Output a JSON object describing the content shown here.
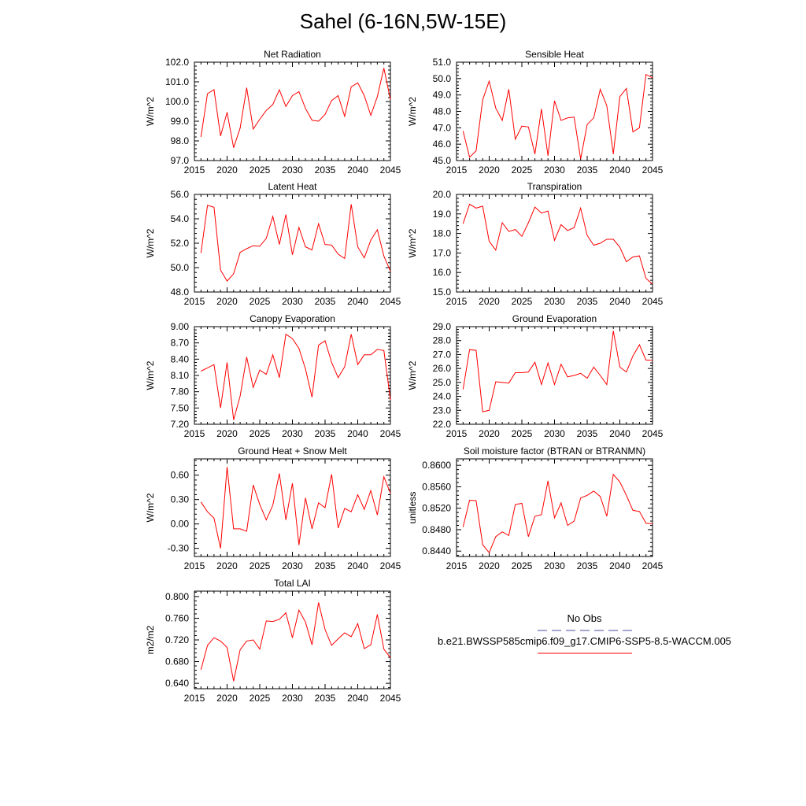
{
  "title": "Sahel (6-16N,5W-15E)",
  "colors": {
    "model": "#ff0000",
    "obs": "#4b4b9f",
    "axis": "#000000"
  },
  "chart_data": [
    {
      "type": "line",
      "title": "Net Radiation",
      "ylabel": "W/m^2",
      "xlim": [
        2015,
        2045
      ],
      "ylim": [
        97.0,
        102.0
      ],
      "xticks": [
        "2015",
        "2020",
        "2025",
        "2030",
        "2035",
        "2040",
        "2045"
      ],
      "yticks": [
        "97.0",
        "98.0",
        "99.0",
        "100.0",
        "101.0",
        "102.0"
      ],
      "x": [
        2016,
        2017,
        2018,
        2019,
        2020,
        2021,
        2022,
        2023,
        2024,
        2025,
        2026,
        2027,
        2028,
        2029,
        2030,
        2031,
        2032,
        2033,
        2034,
        2035,
        2036,
        2037,
        2038,
        2039,
        2040,
        2041,
        2042,
        2043,
        2044,
        2045
      ],
      "series": [
        {
          "name": "b.e21.BWSSP585cmip6.f09_g17.CMIP6-SSP5-8.5-WACCM.005",
          "values": [
            98.2,
            100.4,
            100.6,
            98.25,
            99.45,
            97.65,
            98.65,
            100.7,
            98.6,
            99.1,
            99.55,
            99.85,
            100.6,
            99.75,
            100.3,
            100.5,
            99.65,
            99.05,
            99.0,
            99.35,
            100.05,
            100.3,
            99.25,
            100.75,
            100.95,
            100.3,
            99.3,
            100.25,
            101.7,
            100.1
          ]
        }
      ]
    },
    {
      "type": "line",
      "title": "Sensible Heat",
      "ylabel": "W/m^2",
      "xlim": [
        2015,
        2045
      ],
      "ylim": [
        45.0,
        51.0
      ],
      "xticks": [
        "2015",
        "2020",
        "2025",
        "2030",
        "2035",
        "2040",
        "2045"
      ],
      "yticks": [
        "45.0",
        "46.0",
        "47.0",
        "48.0",
        "49.0",
        "50.0",
        "51.0"
      ],
      "x": [
        2016,
        2017,
        2018,
        2019,
        2020,
        2021,
        2022,
        2023,
        2024,
        2025,
        2026,
        2027,
        2028,
        2029,
        2030,
        2031,
        2032,
        2033,
        2034,
        2035,
        2036,
        2037,
        2038,
        2039,
        2040,
        2041,
        2042,
        2043,
        2044,
        2045
      ],
      "series": [
        {
          "name": "b.e21.BWSSP585cmip6.f09_g17.CMIP6-SSP5-8.5-WACCM.005",
          "values": [
            46.8,
            45.2,
            45.6,
            48.7,
            49.85,
            48.2,
            47.45,
            49.35,
            46.3,
            47.1,
            47.05,
            45.4,
            48.15,
            45.3,
            48.65,
            47.45,
            47.6,
            47.65,
            45.1,
            47.2,
            47.6,
            49.35,
            48.35,
            45.4,
            48.9,
            49.4,
            46.75,
            47.0,
            50.25,
            50.05
          ]
        }
      ]
    },
    {
      "type": "line",
      "title": "Latent Heat",
      "ylabel": "W/m^2",
      "xlim": [
        2015,
        2045
      ],
      "ylim": [
        48.0,
        56.0
      ],
      "xticks": [
        "2015",
        "2020",
        "2025",
        "2030",
        "2035",
        "2040",
        "2045"
      ],
      "yticks": [
        "48.0",
        "50.0",
        "52.0",
        "54.0",
        "56.0"
      ],
      "x": [
        2016,
        2017,
        2018,
        2019,
        2020,
        2021,
        2022,
        2023,
        2024,
        2025,
        2026,
        2027,
        2028,
        2029,
        2030,
        2031,
        2032,
        2033,
        2034,
        2035,
        2036,
        2037,
        2038,
        2039,
        2040,
        2041,
        2042,
        2043,
        2044,
        2045
      ],
      "series": [
        {
          "name": "b.e21.BWSSP585cmip6.f09_g17.CMIP6-SSP5-8.5-WACCM.005",
          "values": [
            51.2,
            55.1,
            54.95,
            49.8,
            48.9,
            49.5,
            51.25,
            51.55,
            51.8,
            51.75,
            52.4,
            54.2,
            51.9,
            54.35,
            51.05,
            53.3,
            51.7,
            51.45,
            53.6,
            51.9,
            51.85,
            51.1,
            50.75,
            55.2,
            51.7,
            50.8,
            52.25,
            53.1,
            50.95,
            49.7
          ]
        }
      ]
    },
    {
      "type": "line",
      "title": "Transpiration",
      "ylabel": "W/m^2",
      "xlim": [
        2015,
        2045
      ],
      "ylim": [
        15.0,
        20.0
      ],
      "xticks": [
        "2015",
        "2020",
        "2025",
        "2030",
        "2035",
        "2040",
        "2045"
      ],
      "yticks": [
        "15.0",
        "16.0",
        "17.0",
        "18.0",
        "19.0",
        "20.0"
      ],
      "x": [
        2016,
        2017,
        2018,
        2019,
        2020,
        2021,
        2022,
        2023,
        2024,
        2025,
        2026,
        2027,
        2028,
        2029,
        2030,
        2031,
        2032,
        2033,
        2034,
        2035,
        2036,
        2037,
        2038,
        2039,
        2040,
        2041,
        2042,
        2043,
        2044,
        2045
      ],
      "series": [
        {
          "name": "b.e21.BWSSP585cmip6.f09_g17.CMIP6-SSP5-8.5-WACCM.005",
          "values": [
            18.5,
            19.5,
            19.3,
            19.4,
            17.6,
            17.15,
            18.55,
            18.1,
            18.2,
            17.85,
            18.55,
            19.35,
            19.05,
            19.15,
            17.65,
            18.45,
            18.15,
            18.3,
            19.3,
            17.9,
            17.4,
            17.5,
            17.7,
            17.7,
            17.3,
            16.55,
            16.8,
            16.85,
            15.7,
            15.4
          ]
        }
      ]
    },
    {
      "type": "line",
      "title": "Canopy Evaporation",
      "ylabel": "W/m^2",
      "xlim": [
        2015,
        2045
      ],
      "ylim": [
        7.2,
        9.0
      ],
      "xticks": [
        "2015",
        "2020",
        "2025",
        "2030",
        "2035",
        "2040",
        "2045"
      ],
      "yticks": [
        "7.20",
        "7.50",
        "7.80",
        "8.10",
        "8.40",
        "8.70",
        "9.00"
      ],
      "x": [
        2016,
        2017,
        2018,
        2019,
        2020,
        2021,
        2022,
        2023,
        2024,
        2025,
        2026,
        2027,
        2028,
        2029,
        2030,
        2031,
        2032,
        2033,
        2034,
        2035,
        2036,
        2037,
        2038,
        2039,
        2040,
        2041,
        2042,
        2043,
        2044,
        2045
      ],
      "series": [
        {
          "name": "b.e21.BWSSP585cmip6.f09_g17.CMIP6-SSP5-8.5-WACCM.005",
          "values": [
            8.18,
            8.24,
            8.3,
            7.5,
            8.34,
            7.28,
            7.72,
            8.44,
            7.88,
            8.2,
            8.12,
            8.48,
            8.06,
            8.86,
            8.78,
            8.6,
            8.22,
            7.7,
            8.66,
            8.74,
            8.34,
            8.06,
            8.26,
            8.86,
            8.3,
            8.48,
            8.48,
            8.58,
            8.56,
            7.65
          ]
        }
      ]
    },
    {
      "type": "line",
      "title": "Ground Evaporation",
      "ylabel": "W/m^2",
      "xlim": [
        2015,
        2045
      ],
      "ylim": [
        22.0,
        29.0
      ],
      "xticks": [
        "2015",
        "2020",
        "2025",
        "2030",
        "2035",
        "2040",
        "2045"
      ],
      "yticks": [
        "22.0",
        "23.0",
        "24.0",
        "25.0",
        "26.0",
        "27.0",
        "28.0",
        "29.0"
      ],
      "x": [
        2016,
        2017,
        2018,
        2019,
        2020,
        2021,
        2022,
        2023,
        2024,
        2025,
        2026,
        2027,
        2028,
        2029,
        2030,
        2031,
        2032,
        2033,
        2034,
        2035,
        2036,
        2037,
        2038,
        2039,
        2040,
        2041,
        2042,
        2043,
        2044,
        2045
      ],
      "series": [
        {
          "name": "b.e21.BWSSP585cmip6.f09_g17.CMIP6-SSP5-8.5-WACCM.005",
          "values": [
            24.5,
            27.35,
            27.3,
            22.9,
            23.0,
            25.05,
            25.0,
            24.95,
            25.7,
            25.7,
            25.75,
            26.45,
            24.85,
            26.4,
            24.85,
            26.3,
            25.4,
            25.5,
            25.65,
            25.3,
            26.1,
            25.5,
            24.85,
            28.7,
            26.1,
            25.75,
            26.9,
            27.7,
            26.6,
            26.6
          ]
        }
      ]
    },
    {
      "type": "line",
      "title": "Ground Heat + Snow Melt",
      "ylabel": "W/m^2",
      "xlim": [
        2015,
        2045
      ],
      "ylim": [
        -0.4,
        0.8
      ],
      "xticks": [
        "2015",
        "2020",
        "2025",
        "2030",
        "2035",
        "2040",
        "2045"
      ],
      "yticks": [
        "-0.30",
        "0.00",
        "0.30",
        "0.60"
      ],
      "x": [
        2016,
        2017,
        2018,
        2019,
        2020,
        2021,
        2022,
        2023,
        2024,
        2025,
        2026,
        2027,
        2028,
        2029,
        2030,
        2031,
        2032,
        2033,
        2034,
        2035,
        2036,
        2037,
        2038,
        2039,
        2040,
        2041,
        2042,
        2043,
        2044,
        2045
      ],
      "series": [
        {
          "name": "b.e21.BWSSP585cmip6.f09_g17.CMIP6-SSP5-8.5-WACCM.005",
          "values": [
            0.27,
            0.15,
            0.07,
            -0.3,
            0.7,
            -0.06,
            -0.06,
            -0.09,
            0.48,
            0.24,
            0.05,
            0.23,
            0.62,
            0.05,
            0.5,
            -0.26,
            0.32,
            -0.06,
            0.26,
            0.2,
            0.61,
            -0.05,
            0.19,
            0.15,
            0.36,
            0.18,
            0.41,
            0.11,
            0.58,
            0.38
          ]
        }
      ]
    },
    {
      "type": "line",
      "title": "Soil moisture factor (BTRAN or BTRANMN)",
      "ylabel": "unitless",
      "xlim": [
        2015,
        2045
      ],
      "ylim": [
        0.843,
        0.8612
      ],
      "xticks": [
        "2015",
        "2020",
        "2025",
        "2030",
        "2035",
        "2040",
        "2045"
      ],
      "yticks": [
        "0.8440",
        "0.8480",
        "0.8520",
        "0.8560",
        "0.8600"
      ],
      "x": [
        2016,
        2017,
        2018,
        2019,
        2020,
        2021,
        2022,
        2023,
        2024,
        2025,
        2026,
        2027,
        2028,
        2029,
        2030,
        2031,
        2032,
        2033,
        2034,
        2035,
        2036,
        2037,
        2038,
        2039,
        2040,
        2041,
        2042,
        2043,
        2044,
        2045
      ],
      "series": [
        {
          "name": "b.e21.BWSSP585cmip6.f09_g17.CMIP6-SSP5-8.5-WACCM.005",
          "values": [
            0.8485,
            0.8535,
            0.8534,
            0.8452,
            0.8437,
            0.8467,
            0.8476,
            0.8469,
            0.8527,
            0.8529,
            0.8467,
            0.8505,
            0.8508,
            0.8571,
            0.8502,
            0.853,
            0.8488,
            0.8496,
            0.8539,
            0.8544,
            0.8552,
            0.8542,
            0.8505,
            0.8583,
            0.8569,
            0.8544,
            0.8516,
            0.8514,
            0.8492,
            0.8491
          ]
        }
      ]
    },
    {
      "type": "line",
      "title": "Total LAI",
      "ylabel": "m2/m2",
      "xlim": [
        2015,
        2045
      ],
      "ylim": [
        0.63,
        0.81
      ],
      "xticks": [
        "2015",
        "2020",
        "2025",
        "2030",
        "2035",
        "2040",
        "2045"
      ],
      "yticks": [
        "0.640",
        "0.680",
        "0.720",
        "0.760",
        "0.800"
      ],
      "x": [
        2016,
        2017,
        2018,
        2019,
        2020,
        2021,
        2022,
        2023,
        2024,
        2025,
        2026,
        2027,
        2028,
        2029,
        2030,
        2031,
        2032,
        2033,
        2034,
        2035,
        2036,
        2037,
        2038,
        2039,
        2040,
        2041,
        2042,
        2043,
        2044,
        2045
      ],
      "series": [
        {
          "name": "b.e21.BWSSP585cmip6.f09_g17.CMIP6-SSP5-8.5-WACCM.005",
          "values": [
            0.665,
            0.71,
            0.724,
            0.718,
            0.706,
            0.644,
            0.702,
            0.718,
            0.72,
            0.703,
            0.755,
            0.754,
            0.758,
            0.77,
            0.724,
            0.775,
            0.753,
            0.711,
            0.789,
            0.739,
            0.71,
            0.722,
            0.733,
            0.726,
            0.75,
            0.704,
            0.711,
            0.767,
            0.703,
            0.687
          ]
        }
      ]
    }
  ],
  "legend": {
    "obs_label": "No Obs",
    "model_label": "b.e21.BWSSP585cmip6.f09_g17.CMIP6-SSP5-8.5-WACCM.005"
  }
}
